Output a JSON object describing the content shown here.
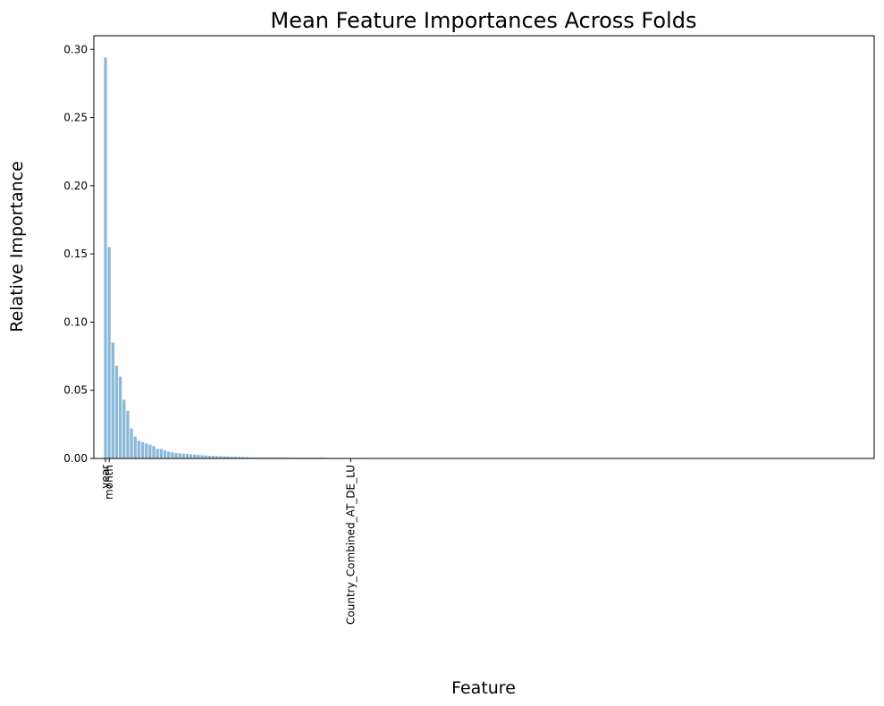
{
  "chart_data": {
    "type": "bar",
    "title": "Mean Feature Importances Across Folds",
    "xlabel": "Feature",
    "ylabel": "Relative Importance",
    "color": "#8cb9d8",
    "categories": [
      "year",
      "month",
      null,
      null,
      null,
      null,
      null,
      null,
      null,
      null,
      null,
      null,
      null,
      null,
      null,
      null,
      null,
      null,
      null,
      null,
      null,
      null,
      null,
      null,
      null,
      null,
      null,
      null,
      null,
      null,
      null,
      null,
      null,
      null,
      null,
      null,
      null,
      null,
      null,
      null,
      null,
      null,
      null,
      null,
      null,
      null,
      null,
      null,
      null,
      null,
      null,
      null,
      null,
      null,
      null,
      null,
      null,
      null,
      null,
      null,
      null,
      null,
      null,
      null,
      null,
      null,
      "Country_Combined_AT_DE_LU",
      null,
      null,
      null,
      null,
      null,
      null,
      null,
      null,
      null,
      null,
      null,
      null,
      null,
      null,
      null,
      null,
      null,
      null,
      null,
      null,
      null,
      null,
      null,
      null,
      null,
      null,
      null,
      null,
      null,
      null,
      null,
      null,
      null,
      null,
      null,
      null,
      null,
      null,
      null,
      null,
      null,
      null,
      null,
      null,
      null,
      null,
      null,
      null,
      null,
      null,
      null,
      null,
      null,
      null,
      null,
      null,
      null,
      null,
      null,
      null,
      null,
      null,
      null,
      null,
      null,
      null,
      null,
      null,
      null,
      null,
      null,
      null,
      null,
      null,
      null,
      null,
      null,
      null,
      null,
      null,
      null,
      null,
      null,
      null,
      null,
      null,
      null,
      null,
      null,
      null,
      null,
      null,
      null,
      null,
      null,
      null,
      null,
      null,
      null,
      null,
      null,
      null,
      null,
      null,
      null,
      null,
      null,
      null,
      null,
      null,
      null,
      null,
      null,
      null,
      null,
      null,
      null,
      null,
      null,
      null,
      null,
      null,
      null,
      null,
      null,
      null,
      null,
      null,
      null,
      null,
      null,
      null,
      null
    ],
    "values": [
      0.294,
      0.155,
      0.085,
      0.068,
      0.06,
      0.043,
      0.035,
      0.022,
      0.016,
      0.013,
      0.012,
      0.011,
      0.01,
      0.009,
      0.007,
      0.007,
      0.006,
      0.005,
      0.0045,
      0.004,
      0.0038,
      0.0035,
      0.0033,
      0.003,
      0.0028,
      0.0026,
      0.0024,
      0.0022,
      0.002,
      0.0019,
      0.0018,
      0.0017,
      0.0016,
      0.0015,
      0.0014,
      0.0013,
      0.0012,
      0.0011,
      0.001,
      0.0009,
      0.0008,
      0.0008,
      0.0008,
      0.0008,
      0.0008,
      0.0008,
      0.0008,
      0.0008,
      0.0008,
      0.0008,
      0.0006,
      0.0006,
      0.0006,
      0.0006,
      0.0006,
      0.0006,
      0.0006,
      0.0006,
      0.0006,
      0.0006,
      0.0004,
      0.0004,
      0.0004,
      0.0004,
      0.0004,
      0.0004,
      0.0004,
      0.0004,
      0.0004,
      0.0004,
      0.0003,
      0.0003,
      0.0003,
      0.0003,
      0.0003,
      0.0003,
      0.0003,
      0.0003,
      0.0003,
      0.0003,
      0.0002,
      0.0002,
      0.0002,
      0.0002,
      0.0002,
      0.0002,
      0.0002,
      0.0002,
      0.0002,
      0.0002,
      0.0002,
      0.0002,
      0.0002,
      0.0002,
      0.0002,
      0.0002,
      0.0002,
      0.0002,
      0.0002,
      0.0002,
      0.0001,
      0.0001,
      0.0001,
      0.0001,
      0.0001,
      0.0001,
      0.0001,
      0.0001,
      0.0001,
      0.0001,
      0.0001,
      0.0001,
      0.0001,
      0.0001,
      0.0001,
      0.0001,
      0.0001,
      0.0001,
      0.0001,
      0.0001,
      0.0001,
      0.0001,
      0.0001,
      0.0001,
      0.0001,
      0.0001,
      0.0001,
      0.0001,
      0.0001,
      0.0001,
      0.0001,
      0.0001,
      0.0001,
      0.0001,
      0.0001,
      0.0001,
      0.0001,
      0.0001,
      0.0001,
      0.0001,
      0,
      0,
      0,
      0,
      0,
      0,
      0,
      0,
      0,
      0,
      0,
      0,
      0,
      0,
      0,
      0,
      0,
      0,
      0,
      0,
      0,
      0,
      0,
      0,
      0,
      0,
      0,
      0,
      0,
      0,
      0,
      0,
      0,
      0,
      0,
      0,
      0,
      0,
      0,
      0,
      0,
      0,
      0,
      0,
      0,
      0,
      0,
      0,
      0,
      0,
      0,
      0,
      0,
      0,
      0,
      0,
      0,
      0,
      0,
      0
    ],
    "ylim": [
      0,
      0.31
    ],
    "yticks": [
      {
        "value": 0,
        "label": "0.00"
      },
      {
        "value": 0.05,
        "label": "0.05"
      },
      {
        "value": 0.1,
        "label": "0.10"
      },
      {
        "value": 0.15,
        "label": "0.15"
      },
      {
        "value": 0.2,
        "label": "0.20"
      },
      {
        "value": 0.25,
        "label": "0.25"
      },
      {
        "value": 0.3,
        "label": "0.30"
      }
    ],
    "grid": false
  }
}
